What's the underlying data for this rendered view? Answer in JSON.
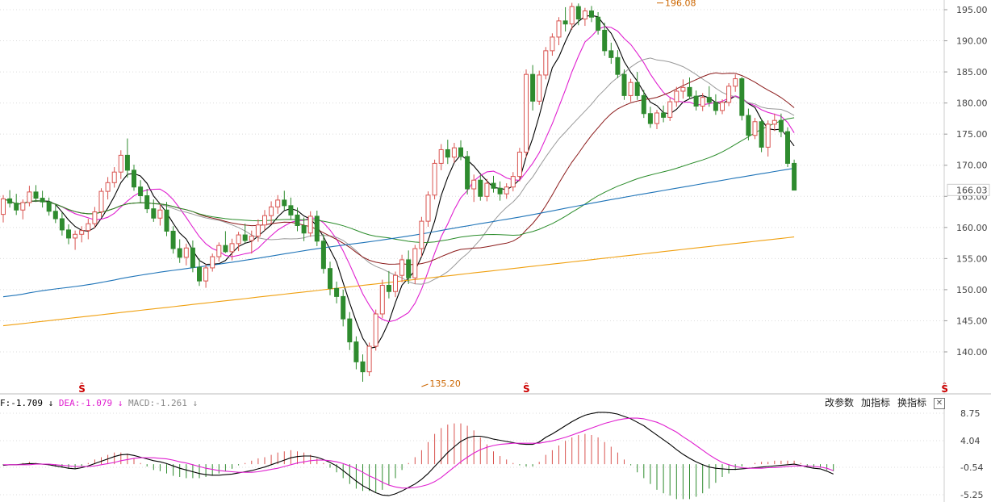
{
  "chart_data": [
    {
      "type": "candlestick",
      "title": "",
      "price_axis": {
        "ticks": [
          "195.00",
          "190.00",
          "185.00",
          "180.00",
          "175.00",
          "170.00",
          "165.00",
          "160.00",
          "155.00",
          "150.00",
          "145.00",
          "140.00"
        ],
        "current_price_label": "166.03",
        "ylim": [
          133.5,
          197.5
        ]
      },
      "annotations": {
        "high": {
          "label": "196.08",
          "index": 100,
          "value": 196.08
        },
        "low": {
          "label": "135.20",
          "index": 64,
          "value": 135.2
        }
      },
      "event_markers": {
        "symbol": "Ŝ",
        "indices": [
          12,
          80,
          144
        ]
      },
      "candles": [
        [
          162.1,
          165.2,
          160.8,
          164.6
        ],
        [
          164.6,
          166.0,
          163.2,
          163.9
        ],
        [
          163.9,
          165.4,
          162.0,
          162.8
        ],
        [
          162.8,
          164.5,
          161.3,
          164.0
        ],
        [
          164.0,
          166.7,
          163.4,
          165.7
        ],
        [
          165.7,
          166.8,
          164.1,
          164.7
        ],
        [
          164.7,
          165.9,
          163.2,
          164.1
        ],
        [
          164.1,
          164.8,
          161.9,
          162.6
        ],
        [
          162.6,
          163.8,
          160.7,
          161.4
        ],
        [
          161.4,
          162.4,
          158.7,
          159.6
        ],
        [
          159.6,
          160.5,
          157.3,
          158.3
        ],
        [
          158.3,
          159.5,
          156.4,
          158.9
        ],
        [
          158.9,
          160.2,
          157.6,
          159.5
        ],
        [
          159.5,
          161.4,
          158.1,
          160.6
        ],
        [
          160.6,
          163.3,
          159.9,
          162.5
        ],
        [
          162.5,
          166.3,
          161.7,
          165.8
        ],
        [
          165.8,
          168.1,
          164.5,
          167.2
        ],
        [
          167.2,
          169.7,
          166.4,
          168.9
        ],
        [
          168.9,
          172.4,
          167.8,
          171.6
        ],
        [
          171.6,
          174.3,
          168.0,
          169.2
        ],
        [
          169.2,
          170.1,
          165.9,
          166.5
        ],
        [
          166.5,
          167.6,
          164.0,
          165.1
        ],
        [
          165.1,
          166.2,
          162.3,
          163.0
        ],
        [
          163.0,
          164.5,
          160.9,
          161.5
        ],
        [
          161.5,
          163.7,
          160.3,
          162.8
        ],
        [
          162.8,
          164.1,
          158.6,
          159.4
        ],
        [
          159.4,
          160.2,
          155.8,
          156.6
        ],
        [
          156.6,
          158.1,
          154.3,
          155.2
        ],
        [
          155.2,
          157.4,
          153.9,
          156.7
        ],
        [
          156.7,
          157.9,
          152.8,
          153.6
        ],
        [
          153.6,
          155.0,
          150.6,
          151.4
        ],
        [
          151.4,
          154.1,
          150.3,
          153.5
        ],
        [
          153.5,
          155.8,
          152.9,
          155.3
        ],
        [
          155.3,
          157.6,
          154.5,
          157.1
        ],
        [
          157.1,
          159.4,
          155.9,
          156.1
        ],
        [
          156.1,
          158.2,
          154.7,
          157.4
        ],
        [
          157.4,
          159.3,
          156.2,
          158.8
        ],
        [
          158.8,
          160.6,
          157.5,
          157.9
        ],
        [
          157.9,
          159.5,
          155.8,
          158.6
        ],
        [
          158.6,
          161.3,
          157.7,
          160.4
        ],
        [
          160.4,
          162.8,
          159.5,
          161.9
        ],
        [
          161.9,
          164.2,
          160.6,
          163.3
        ],
        [
          163.3,
          165.2,
          162.2,
          164.4
        ],
        [
          164.4,
          165.9,
          162.8,
          163.5
        ],
        [
          163.5,
          164.8,
          161.2,
          162.0
        ],
        [
          162.0,
          163.2,
          159.4,
          160.3
        ],
        [
          160.3,
          161.6,
          157.8,
          159.1
        ],
        [
          159.1,
          162.6,
          158.5,
          161.8
        ],
        [
          161.8,
          162.7,
          157.0,
          157.8
        ],
        [
          157.8,
          158.9,
          152.6,
          153.4
        ],
        [
          153.4,
          154.5,
          149.1,
          150.2
        ],
        [
          150.2,
          151.3,
          147.8,
          148.9
        ],
        [
          148.9,
          150.0,
          144.1,
          145.3
        ],
        [
          145.3,
          146.4,
          140.3,
          141.6
        ],
        [
          141.6,
          142.5,
          137.2,
          138.4
        ],
        [
          138.4,
          139.6,
          135.2,
          136.8
        ],
        [
          136.8,
          141.5,
          136.1,
          140.9
        ],
        [
          140.9,
          146.8,
          140.2,
          146.1
        ],
        [
          146.1,
          151.6,
          145.4,
          150.7
        ],
        [
          150.7,
          153.0,
          148.6,
          149.7
        ],
        [
          149.7,
          152.9,
          148.8,
          152.3
        ],
        [
          152.3,
          155.6,
          151.2,
          154.8
        ],
        [
          154.8,
          156.3,
          150.9,
          151.9
        ],
        [
          151.9,
          157.2,
          150.9,
          156.6
        ],
        [
          156.6,
          161.7,
          155.3,
          161.0
        ],
        [
          161.0,
          165.8,
          160.1,
          165.2
        ],
        [
          165.2,
          170.9,
          164.5,
          170.3
        ],
        [
          170.3,
          173.4,
          169.2,
          172.5
        ],
        [
          172.5,
          174.1,
          170.2,
          171.3
        ],
        [
          171.3,
          173.6,
          170.4,
          172.8
        ],
        [
          172.8,
          174.0,
          170.8,
          171.4
        ],
        [
          171.4,
          172.3,
          165.3,
          166.2
        ],
        [
          166.2,
          168.5,
          164.1,
          167.6
        ],
        [
          167.6,
          168.4,
          164.3,
          165.0
        ],
        [
          165.0,
          167.8,
          164.2,
          167.1
        ],
        [
          167.1,
          168.3,
          165.6,
          166.3
        ],
        [
          166.3,
          167.4,
          164.3,
          165.4
        ],
        [
          165.4,
          167.1,
          164.6,
          166.5
        ],
        [
          166.5,
          168.9,
          165.8,
          168.2
        ],
        [
          168.2,
          172.8,
          167.4,
          172.1
        ],
        [
          172.1,
          185.4,
          171.2,
          184.6
        ],
        [
          184.6,
          186.1,
          178.8,
          180.3
        ],
        [
          180.3,
          185.2,
          179.7,
          184.5
        ],
        [
          184.5,
          189.0,
          183.8,
          188.4
        ],
        [
          188.4,
          191.2,
          187.6,
          190.6
        ],
        [
          190.6,
          193.8,
          189.3,
          193.2
        ],
        [
          193.2,
          195.4,
          191.5,
          192.7
        ],
        [
          192.7,
          196.1,
          191.8,
          195.5
        ],
        [
          195.5,
          196.0,
          192.5,
          193.5
        ],
        [
          193.5,
          195.3,
          192.4,
          194.8
        ],
        [
          194.8,
          195.6,
          193.0,
          193.8
        ],
        [
          193.8,
          194.6,
          191.0,
          191.7
        ],
        [
          191.7,
          192.9,
          187.6,
          188.4
        ],
        [
          188.4,
          189.7,
          186.3,
          187.3
        ],
        [
          187.3,
          188.5,
          184.0,
          184.6
        ],
        [
          184.6,
          185.4,
          180.5,
          181.2
        ],
        [
          181.2,
          183.9,
          180.2,
          183.3
        ],
        [
          183.3,
          185.0,
          180.5,
          181.2
        ],
        [
          181.2,
          182.1,
          177.6,
          178.3
        ],
        [
          178.3,
          179.4,
          176.0,
          176.7
        ],
        [
          176.7,
          178.9,
          175.8,
          178.4
        ],
        [
          178.4,
          179.6,
          176.9,
          177.7
        ],
        [
          177.7,
          180.8,
          177.1,
          180.2
        ],
        [
          180.2,
          182.6,
          179.4,
          181.9
        ],
        [
          181.9,
          183.8,
          180.7,
          182.5
        ],
        [
          182.5,
          184.1,
          180.6,
          181.1
        ],
        [
          181.1,
          182.0,
          178.8,
          179.5
        ],
        [
          179.5,
          181.6,
          178.7,
          180.9
        ],
        [
          180.9,
          182.7,
          179.4,
          180.1
        ],
        [
          180.1,
          181.4,
          178.1,
          178.8
        ],
        [
          178.8,
          180.6,
          178.2,
          180.1
        ],
        [
          180.1,
          183.2,
          179.5,
          182.7
        ],
        [
          182.7,
          184.6,
          181.8,
          183.9
        ],
        [
          183.9,
          184.2,
          177.2,
          178.0
        ],
        [
          178.0,
          179.1,
          174.0,
          174.8
        ],
        [
          174.8,
          177.6,
          174.2,
          177.0
        ],
        [
          177.0,
          177.5,
          172.1,
          172.9
        ],
        [
          172.9,
          177.2,
          171.4,
          176.6
        ],
        [
          176.6,
          178.3,
          175.5,
          177.2
        ],
        [
          177.2,
          178.3,
          174.5,
          175.4
        ],
        [
          175.4,
          176.1,
          169.7,
          170.3
        ],
        [
          170.3,
          170.9,
          166.0,
          166.0
        ]
      ],
      "ma_lines": [
        "MA5",
        "MA10",
        "MA20",
        "MA30",
        "MA60",
        "MA120",
        "MA250"
      ],
      "xlabel": "",
      "ylabel": ""
    },
    {
      "type": "line",
      "title": "",
      "legend_prefix": "F:-1.709",
      "legend": {
        "dea": "DEA:-1.079",
        "macd": "MACD:-1.261"
      },
      "axis_ticks": [
        "8.75",
        "4.04",
        "-0.54",
        "-5.25"
      ],
      "ylim": [
        -5.9,
        9.4
      ],
      "series": [
        {
          "name": "DIF",
          "values": [
            -0.2,
            -0.1,
            -0.1,
            0.0,
            0.1,
            0.1,
            0.0,
            -0.1,
            -0.3,
            -0.5,
            -0.7,
            -0.8,
            -0.6,
            -0.3,
            0.1,
            0.5,
            0.9,
            1.3,
            1.6,
            1.7,
            1.5,
            1.2,
            0.9,
            0.6,
            0.4,
            0.1,
            -0.3,
            -0.7,
            -1.0,
            -1.3,
            -1.6,
            -1.8,
            -1.9,
            -1.9,
            -1.8,
            -1.7,
            -1.5,
            -1.3,
            -1.1,
            -0.8,
            -0.5,
            -0.1,
            0.3,
            0.7,
            1.1,
            1.3,
            1.4,
            1.4,
            1.2,
            0.8,
            0.3,
            -0.3,
            -1.1,
            -2.0,
            -2.9,
            -3.7,
            -4.3,
            -4.9,
            -5.3,
            -5.4,
            -5.1,
            -4.6,
            -4.0,
            -3.4,
            -2.6,
            -1.6,
            -0.4,
            0.8,
            2.0,
            3.0,
            3.9,
            4.5,
            4.8,
            4.8,
            4.6,
            4.3,
            4.1,
            3.9,
            3.7,
            3.5,
            3.4,
            3.4,
            3.8,
            4.6,
            5.2,
            5.9,
            6.6,
            7.3,
            7.9,
            8.4,
            8.7,
            8.9,
            8.9,
            8.8,
            8.6,
            8.2,
            7.8,
            7.2,
            6.6,
            5.8,
            5.0,
            4.2,
            3.4,
            2.5,
            1.7,
            1.0,
            0.4,
            -0.1,
            -0.5,
            -0.7,
            -0.8,
            -0.9,
            -0.9,
            -0.8,
            -0.7,
            -0.6,
            -0.5,
            -0.4,
            -0.3,
            -0.2,
            -0.1,
            0.0,
            -0.2,
            -0.5,
            -0.7,
            -0.8,
            -1.2,
            -1.7
          ]
        },
        {
          "name": "DEA",
          "values": [
            -0.1,
            -0.1,
            -0.1,
            -0.1,
            -0.1,
            0.0,
            0.0,
            0.0,
            -0.1,
            -0.2,
            -0.3,
            -0.4,
            -0.4,
            -0.4,
            -0.3,
            -0.1,
            0.1,
            0.3,
            0.6,
            0.8,
            1.0,
            1.1,
            1.1,
            1.1,
            1.0,
            0.9,
            0.7,
            0.4,
            0.2,
            -0.1,
            -0.4,
            -0.7,
            -0.9,
            -1.1,
            -1.2,
            -1.3,
            -1.4,
            -1.4,
            -1.4,
            -1.3,
            -1.1,
            -0.9,
            -0.7,
            -0.4,
            -0.1,
            0.2,
            0.4,
            0.6,
            0.7,
            0.7,
            0.6,
            0.4,
            0.1,
            -0.3,
            -0.8,
            -1.4,
            -2.0,
            -2.5,
            -3.1,
            -3.6,
            -3.9,
            -4.1,
            -4.1,
            -4.0,
            -3.8,
            -3.5,
            -3.0,
            -2.3,
            -1.4,
            -0.5,
            0.4,
            1.2,
            1.9,
            2.5,
            2.9,
            3.2,
            3.4,
            3.5,
            3.6,
            3.6,
            3.6,
            3.6,
            3.6,
            3.8,
            4.0,
            4.3,
            4.6,
            5.0,
            5.4,
            5.8,
            6.2,
            6.6,
            7.0,
            7.3,
            7.6,
            7.8,
            7.9,
            7.9,
            7.8,
            7.5,
            7.2,
            6.7,
            6.1,
            5.5,
            4.7,
            4.0,
            3.2,
            2.4,
            1.6,
            0.9,
            0.3,
            -0.1,
            -0.4,
            -0.6,
            -0.7,
            -0.7,
            -0.7,
            -0.6,
            -0.6,
            -0.5,
            -0.4,
            -0.3,
            -0.3,
            -0.3,
            -0.4,
            -0.5,
            -0.7,
            -1.1
          ]
        }
      ],
      "histogram_name": "MACD",
      "xlabel": "",
      "ylabel": ""
    }
  ],
  "toolbar": {
    "change_params": "改参数",
    "add_indicator": "加指标",
    "switch_indicator": "换指标",
    "close": "✕"
  },
  "colors": {
    "up": "#d9534f",
    "down": "#2e8b2e",
    "ma5": "#000000",
    "ma10": "#e020d0",
    "ma20": "#999999",
    "ma30": "#8b1a1a",
    "ma60": "#2a8c2a",
    "ma120": "#1f74b8",
    "ma250": "#f0a010",
    "dif": "#000000",
    "dea": "#e020d0",
    "annotation": "#cc6600",
    "marker": "#cc0000"
  }
}
